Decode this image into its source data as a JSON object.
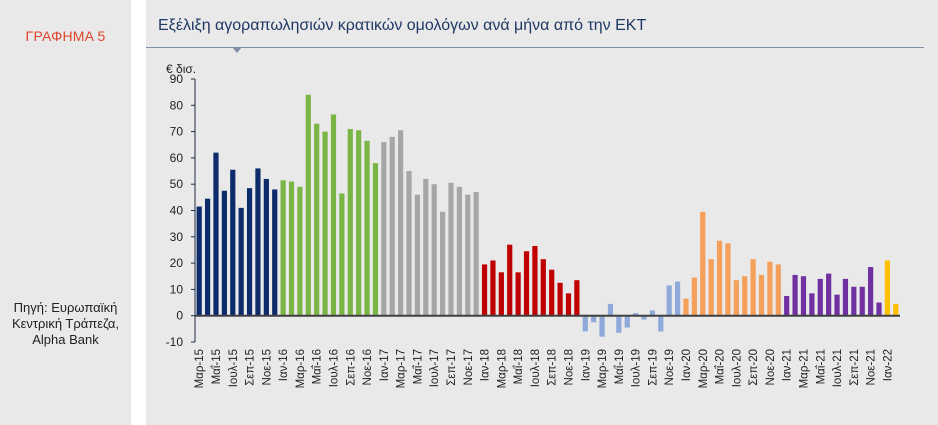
{
  "sidebar": {
    "figure_label": "ΓΡΑΦΗΜΑ 5",
    "source_text": "Πηγή: Ευρωπαϊκή Κεντρική Τράπεζα, Alpha Bank"
  },
  "chart_data": {
    "type": "bar",
    "title": "Εξέλιξη αγοραπωλησιών κρατικών ομολόγων ανά μήνα από την ΕΚΤ",
    "unit_label": "€ δισ.",
    "ylim": [
      -10,
      90
    ],
    "yticks": [
      -10,
      0,
      10,
      20,
      30,
      40,
      50,
      60,
      70,
      80,
      90
    ],
    "grid": false,
    "legend": "none",
    "categories": [
      "Μαρ-15",
      "Απρ-15",
      "Μαΐ-15",
      "Ιουν-15",
      "Ιουλ-15",
      "Αυγ-15",
      "Σεπ-15",
      "Οκτ-15",
      "Νοε-15",
      "Δεκ-15",
      "Ιαν-16",
      "Φεβ-16",
      "Μαρ-16",
      "Απρ-16",
      "Μαΐ-16",
      "Ιουν-16",
      "Ιουλ-16",
      "Αυγ-16",
      "Σεπ-16",
      "Οκτ-16",
      "Νοε-16",
      "Δεκ-16",
      "Ιαν-17",
      "Φεβ-17",
      "Μαρ-17",
      "Απρ-17",
      "Μαΐ-17",
      "Ιουν-17",
      "Ιουλ-17",
      "Αυγ-17",
      "Σεπ-17",
      "Οκτ-17",
      "Νοε-17",
      "Δεκ-17",
      "Ιαν-18",
      "Φεβ-18",
      "Μαρ-18",
      "Απρ-18",
      "Μαΐ-18",
      "Ιουν-18",
      "Ιουλ-18",
      "Αυγ-18",
      "Σεπ-18",
      "Οκτ-18",
      "Νοε-18",
      "Δεκ-18",
      "Ιαν-19",
      "Φεβ-19",
      "Μαρ-19",
      "Απρ-19",
      "Μαΐ-19",
      "Ιουν-19",
      "Ιουλ-19",
      "Αυγ-19",
      "Σεπ-19",
      "Οκτ-19",
      "Νοε-19",
      "Δεκ-19",
      "Ιαν-20",
      "Φεβ-20",
      "Μαρ-20",
      "Απρ-20",
      "Μαΐ-20",
      "Ιουν-20",
      "Ιουλ-20",
      "Αυγ-20",
      "Σεπ-20",
      "Οκτ-20",
      "Νοε-20",
      "Δεκ-20",
      "Ιαν-21",
      "Φεβ-21",
      "Μαρ-21",
      "Απρ-21",
      "Μαΐ-21",
      "Ιουν-21",
      "Ιουλ-21",
      "Αυγ-21",
      "Σεπ-21",
      "Οκτ-21",
      "Νοε-21",
      "Δεκ-21",
      "Ιαν-22",
      "Φεβ-22"
    ],
    "tick_labels": [
      "Μαρ-15",
      "Μαΐ-15",
      "Ιουλ-15",
      "Σεπ-15",
      "Νοε-15",
      "Ιαν-16",
      "Μαρ-16",
      "Μαΐ-16",
      "Ιουλ-16",
      "Σεπ-16",
      "Νοε-16",
      "Ιαν-17",
      "Μαρ-17",
      "Μαΐ-17",
      "Ιουλ-17",
      "Σεπ-17",
      "Νοε-17",
      "Ιαν-18",
      "Μαρ-18",
      "Μαΐ-18",
      "Ιουλ-18",
      "Σεπ-18",
      "Νοε-18",
      "Ιαν-19",
      "Μαρ-19",
      "Μαΐ-19",
      "Ιουλ-19",
      "Σεπ-19",
      "Νοε-19",
      "Ιαν-20",
      "Μαρ-20",
      "Μαΐ-20",
      "Ιουλ-20",
      "Σεπ-20",
      "Νοε-20",
      "Ιαν-21",
      "Μαρ-21",
      "Μαΐ-21",
      "Ιουλ-21",
      "Σεπ-21",
      "Νοε-21",
      "Ιαν-22"
    ],
    "values": [
      41.5,
      44.5,
      62,
      47.5,
      55.5,
      41,
      48.5,
      56,
      52,
      48,
      51.5,
      51,
      49,
      84,
      73,
      70,
      76.5,
      46.5,
      71,
      70.5,
      66.5,
      58,
      66,
      68,
      70.5,
      55,
      46,
      52,
      50,
      39.5,
      50.5,
      49,
      46,
      47,
      19.5,
      21,
      16.5,
      27,
      16.5,
      24.5,
      26.5,
      21.5,
      17.5,
      12.5,
      8.5,
      13.5,
      -6,
      -2.5,
      -8,
      4.5,
      -6.5,
      -4.5,
      1,
      -1.5,
      2,
      -6,
      11.5,
      13,
      6.5,
      14.5,
      39.5,
      21.5,
      28.5,
      27.5,
      13.5,
      15,
      21.5,
      15.5,
      20.5,
      19.5,
      7.5,
      15.5,
      15,
      8.5,
      14,
      16,
      8,
      14,
      11,
      11,
      18.5,
      5,
      21,
      4.5
    ],
    "colors": {
      "2015": "#0d2b6b",
      "2016": "#79b544",
      "2017": "#a6a6a6",
      "2018": "#c00000",
      "2019": "#8eaadb",
      "2020": "#f4a05a",
      "2021": "#7030a0",
      "2022": "#ffc000"
    },
    "bar_year_groups": [
      "2015",
      "2015",
      "2015",
      "2015",
      "2015",
      "2015",
      "2015",
      "2015",
      "2015",
      "2015",
      "2016",
      "2016",
      "2016",
      "2016",
      "2016",
      "2016",
      "2016",
      "2016",
      "2016",
      "2016",
      "2016",
      "2016",
      "2017",
      "2017",
      "2017",
      "2017",
      "2017",
      "2017",
      "2017",
      "2017",
      "2017",
      "2017",
      "2017",
      "2017",
      "2018",
      "2018",
      "2018",
      "2018",
      "2018",
      "2018",
      "2018",
      "2018",
      "2018",
      "2018",
      "2018",
      "2018",
      "2019",
      "2019",
      "2019",
      "2019",
      "2019",
      "2019",
      "2019",
      "2019",
      "2019",
      "2019",
      "2019",
      "2019",
      "2020",
      "2020",
      "2020",
      "2020",
      "2020",
      "2020",
      "2020",
      "2020",
      "2020",
      "2020",
      "2020",
      "2020",
      "2021",
      "2021",
      "2021",
      "2021",
      "2021",
      "2021",
      "2021",
      "2021",
      "2021",
      "2021",
      "2021",
      "2021",
      "2022",
      "2022"
    ],
    "zero_line_color": "#404040",
    "axis_color": "#1f2a44"
  }
}
